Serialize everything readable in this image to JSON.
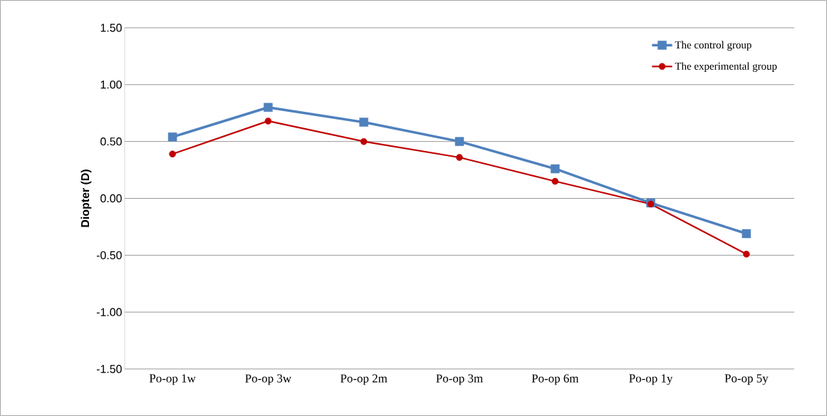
{
  "chart_data": {
    "type": "line",
    "ylabel": "Diopter (D)",
    "categories": [
      "Po-op 1w",
      "Po-op 3w",
      "Po-op 2m",
      "Po-op 3m",
      "Po-op 6m",
      "Po-op 1y",
      "Po-op 5y"
    ],
    "series": [
      {
        "name": "The control group",
        "color": "#4f81bd",
        "marker": "square",
        "values": [
          0.54,
          0.8,
          0.67,
          0.5,
          0.26,
          -0.04,
          -0.31
        ]
      },
      {
        "name": "The experimental group",
        "color": "#c00000",
        "marker": "circle",
        "values": [
          0.39,
          0.68,
          0.5,
          0.36,
          0.15,
          -0.05,
          -0.49
        ]
      }
    ],
    "ylim": [
      -1.5,
      1.5
    ],
    "yticks": [
      {
        "value": -1.5,
        "label": "-1.50"
      },
      {
        "value": -1.0,
        "label": "-1.00"
      },
      {
        "value": -0.5,
        "label": "-0.50"
      },
      {
        "value": 0,
        "label": "0.00"
      },
      {
        "value": 0.5,
        "label": "0.50"
      },
      {
        "value": 1.0,
        "label": "1.00"
      },
      {
        "value": 1.5,
        "label": "1.50"
      }
    ],
    "grid": "y",
    "legend": "top right",
    "line_style": "solid"
  }
}
